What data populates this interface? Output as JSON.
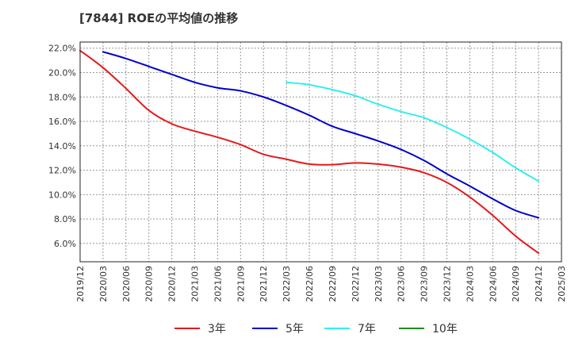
{
  "chart_data": {
    "type": "line",
    "title": "[7844]  ROEの平均値の推移",
    "xlabel": "",
    "ylabel": "",
    "ylim": [
      4.5,
      22.5
    ],
    "grid": true,
    "legend_position": "bottom",
    "x": [
      "2019/12",
      "2020/03",
      "2020/06",
      "2020/09",
      "2020/12",
      "2021/03",
      "2021/06",
      "2021/09",
      "2021/12",
      "2022/03",
      "2022/06",
      "2022/09",
      "2022/12",
      "2023/03",
      "2023/06",
      "2023/09",
      "2023/12",
      "2024/03",
      "2024/06",
      "2024/09",
      "2024/12",
      "2025/03"
    ],
    "y_ticks": [
      "6.0%",
      "8.0%",
      "10.0%",
      "12.0%",
      "14.0%",
      "16.0%",
      "18.0%",
      "20.0%",
      "22.0%"
    ],
    "y_tick_values": [
      6,
      8,
      10,
      12,
      14,
      16,
      18,
      20,
      22
    ],
    "series": [
      {
        "name": "3年",
        "color": "#e41a1c",
        "values": [
          21.8,
          20.4,
          18.7,
          16.9,
          15.8,
          15.2,
          14.7,
          14.1,
          13.3,
          12.9,
          12.5,
          12.45,
          12.6,
          12.5,
          12.25,
          11.8,
          11.0,
          9.8,
          8.3,
          6.6,
          5.2,
          null
        ]
      },
      {
        "name": "5年",
        "color": "#0000cc",
        "values": [
          null,
          21.7,
          21.15,
          20.5,
          19.85,
          19.2,
          18.75,
          18.5,
          18.0,
          17.3,
          16.5,
          15.6,
          15.0,
          14.4,
          13.7,
          12.8,
          11.7,
          10.7,
          9.65,
          8.7,
          8.1,
          null
        ]
      },
      {
        "name": "7年",
        "color": "#33eeee",
        "values": [
          null,
          null,
          null,
          null,
          null,
          null,
          null,
          null,
          null,
          19.2,
          19.0,
          18.6,
          18.1,
          17.4,
          16.8,
          16.3,
          15.5,
          14.55,
          13.45,
          12.2,
          11.1,
          null
        ]
      },
      {
        "name": "10年",
        "color": "#228b22",
        "values": [
          null,
          null,
          null,
          null,
          null,
          null,
          null,
          null,
          null,
          null,
          null,
          null,
          null,
          null,
          null,
          null,
          null,
          null,
          null,
          null,
          null,
          null
        ]
      }
    ]
  }
}
